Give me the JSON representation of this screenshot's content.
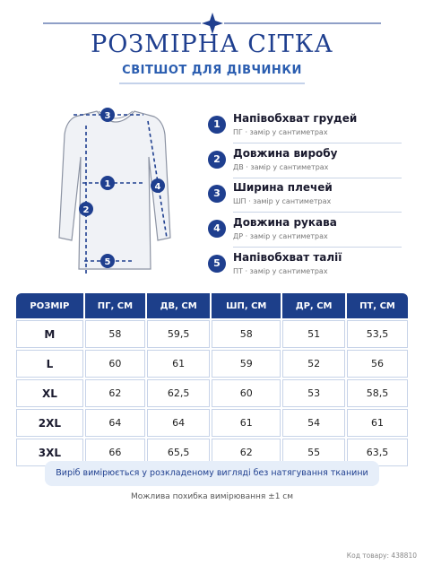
{
  "header": {
    "title": "РОЗМІРНА СІТКА",
    "subtitle": "СВІТШОТ ДЛЯ ДІВЧИНКИ"
  },
  "measurements": [
    {
      "number": "1",
      "name": "Напівобхват грудей",
      "note": "ПГ · замір у сантиметрах"
    },
    {
      "number": "2",
      "name": "Довжина виробу",
      "note": "ДВ · замір у сантиметрах"
    },
    {
      "number": "3",
      "name": "Ширина плечей",
      "note": "ШП · замір у сантиметрах"
    },
    {
      "number": "4",
      "name": "Довжина рукава",
      "note": "ДР · замір у сантиметрах"
    },
    {
      "number": "5",
      "name": "Напівобхват талії",
      "note": "ПТ · замір у сантиметрах"
    }
  ],
  "table": {
    "headers": [
      "РОЗМІР",
      "ПГ, СМ",
      "ДВ, СМ",
      "ШП, СМ",
      "ДР, СМ",
      "ПТ, СМ"
    ],
    "rows": [
      [
        "M",
        "58",
        "59,5",
        "58",
        "51",
        "53,5"
      ],
      [
        "L",
        "60",
        "61",
        "59",
        "52",
        "56"
      ],
      [
        "XL",
        "62",
        "62,5",
        "60",
        "53",
        "58,5"
      ],
      [
        "2XL",
        "64",
        "64",
        "61",
        "54",
        "61"
      ],
      [
        "3XL",
        "66",
        "65,5",
        "62",
        "55",
        "63,5"
      ]
    ]
  },
  "note": "Виріб вимірюється у розкладеному вигляді без натягування тканини",
  "footnote": "Можлива похибка вимірювання ±1 см",
  "product_code": "Код товару: 438810"
}
